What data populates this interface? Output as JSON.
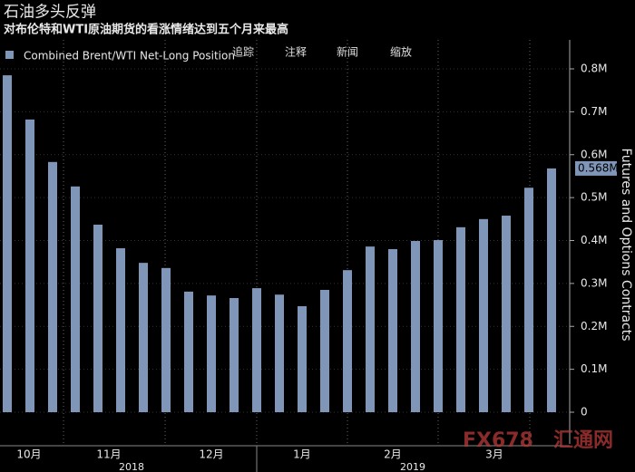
{
  "chart_data": {
    "type": "bar",
    "title": "石油多头反弹",
    "subtitle": "对布伦特和WTI原油期货的看涨情绪达到五个月来最高",
    "toolbar": [
      "追踪",
      "注释",
      "新闻",
      "缩放"
    ],
    "y_axis_label": "Futures and Options Contracts",
    "watermark": [
      "FX678",
      "汇通网"
    ],
    "x_months": [
      "10月",
      "11月",
      "12月",
      "1月",
      "2月",
      "3月"
    ],
    "x_years": [
      "2018",
      "2019"
    ],
    "categories": [
      null,
      null,
      null,
      null,
      null,
      null,
      null,
      null,
      null,
      null,
      null,
      null,
      null,
      null,
      null,
      null,
      null,
      null,
      null,
      null,
      null,
      null,
      null,
      null,
      null
    ],
    "series": [
      {
        "name": "Combined Brent/WTI Net-Long Position",
        "color": "#7f96b8",
        "values": [
          0.785,
          0.682,
          0.583,
          0.526,
          0.437,
          0.382,
          0.348,
          0.336,
          0.281,
          0.272,
          0.266,
          0.289,
          0.274,
          0.247,
          0.285,
          0.331,
          0.386,
          0.38,
          0.399,
          0.401,
          0.431,
          0.45,
          0.458,
          0.523,
          0.568
        ],
        "value_labels": {
          "24": "0.568M"
        }
      }
    ],
    "ylim": [
      0,
      0.8
    ],
    "yticks": [
      {
        "value": 0,
        "label": "0"
      },
      {
        "value": 0.1,
        "label": "0.1M"
      },
      {
        "value": 0.2,
        "label": "0.2M"
      },
      {
        "value": 0.3,
        "label": "0.3M"
      },
      {
        "value": 0.4,
        "label": "0.4M"
      },
      {
        "value": 0.5,
        "label": "0.5M"
      },
      {
        "value": 0.6,
        "label": "0.6M"
      },
      {
        "value": 0.7,
        "label": "0.7M"
      },
      {
        "value": 0.8,
        "label": "0.8M"
      }
    ],
    "grid": true
  }
}
